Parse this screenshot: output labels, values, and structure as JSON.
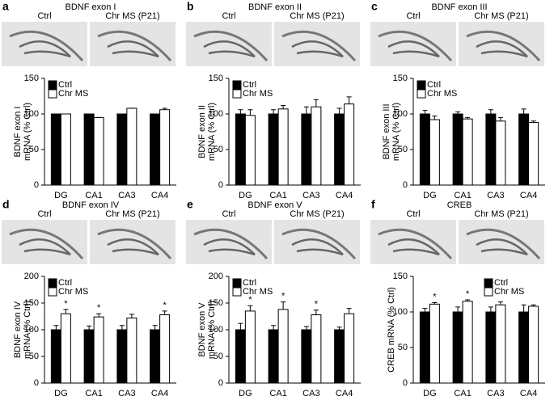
{
  "chart_data": [
    {
      "type": "bar",
      "panel_label": "a",
      "title": "BDNF exon I",
      "image_labels": [
        "Ctrl",
        "Chr MS (P21)"
      ],
      "ylabel": [
        "BDNF exon I",
        "mRNA (% Ctrl)"
      ],
      "categories": [
        "DG",
        "CA1",
        "CA3",
        "CA4"
      ],
      "series": [
        {
          "name": "Ctrl",
          "color": "#000000",
          "values": [
            100,
            100,
            100,
            100
          ],
          "errors": [
            0,
            0,
            0,
            0
          ]
        },
        {
          "name": "Chr MS",
          "color": "#ffffff",
          "values": [
            100,
            95,
            108,
            106
          ],
          "errors": [
            0,
            0,
            0,
            2
          ]
        }
      ],
      "ylim": [
        0,
        150
      ],
      "yticks": [
        0,
        50,
        100,
        150
      ],
      "legend": "upper left"
    },
    {
      "type": "bar",
      "panel_label": "b",
      "title": "BDNF exon II",
      "image_labels": [
        "Ctrl",
        "Chr MS (P21)"
      ],
      "ylabel": [
        "BDNF exon II",
        "mRNA (% Ctrl)"
      ],
      "categories": [
        "DG",
        "CA1",
        "CA3",
        "CA4"
      ],
      "series": [
        {
          "name": "Ctrl",
          "color": "#000000",
          "values": [
            100,
            100,
            100,
            100
          ],
          "errors": [
            6,
            6,
            10,
            8
          ]
        },
        {
          "name": "Chr MS",
          "color": "#ffffff",
          "values": [
            98,
            107,
            110,
            114
          ],
          "errors": [
            8,
            5,
            10,
            10
          ]
        }
      ],
      "ylim": [
        0,
        150
      ],
      "yticks": [
        0,
        50,
        100,
        150
      ],
      "legend": "upper left"
    },
    {
      "type": "bar",
      "panel_label": "c",
      "title": "BDNF exon III",
      "image_labels": [
        "Ctrl",
        "Chr MS (P21)"
      ],
      "ylabel": [
        "BDNF exon III",
        "mRNA (% Ctrl)"
      ],
      "categories": [
        "DG",
        "CA1",
        "CA3",
        "CA4"
      ],
      "series": [
        {
          "name": "Ctrl",
          "color": "#000000",
          "values": [
            100,
            100,
            100,
            100
          ],
          "errors": [
            5,
            3,
            6,
            7
          ]
        },
        {
          "name": "Chr MS",
          "color": "#ffffff",
          "values": [
            92,
            93,
            90,
            88
          ],
          "errors": [
            5,
            2,
            5,
            2
          ]
        }
      ],
      "ylim": [
        0,
        150
      ],
      "yticks": [
        0,
        50,
        100,
        150
      ],
      "legend": "upper left"
    },
    {
      "type": "bar",
      "panel_label": "d",
      "title": "BDNF exon IV",
      "image_labels": [
        "Ctrl",
        "Chr MS (P21)"
      ],
      "ylabel": [
        "BDNF exon IV",
        "mRNA (% Ctrl)"
      ],
      "categories": [
        "DG",
        "CA1",
        "CA3",
        "CA4"
      ],
      "series": [
        {
          "name": "Ctrl",
          "color": "#000000",
          "values": [
            100,
            100,
            100,
            100
          ],
          "errors": [
            8,
            7,
            8,
            8
          ]
        },
        {
          "name": "Chr MS",
          "color": "#ffffff",
          "values": [
            130,
            124,
            122,
            128
          ],
          "errors": [
            8,
            6,
            7,
            7
          ],
          "markers": [
            "*",
            "*",
            null,
            "*"
          ]
        }
      ],
      "ylim": [
        0,
        200
      ],
      "yticks": [
        0,
        50,
        100,
        150,
        200
      ],
      "legend": "upper left"
    },
    {
      "type": "bar",
      "panel_label": "e",
      "title": "BDNF exon V",
      "image_labels": [
        "Ctrl",
        "Chr MS (P21)"
      ],
      "ylabel": [
        "BDNF exon V",
        "mRNA (% Ctrl)"
      ],
      "categories": [
        "DG",
        "CA1",
        "CA3",
        "CA4"
      ],
      "series": [
        {
          "name": "Ctrl",
          "color": "#000000",
          "values": [
            100,
            100,
            100,
            100
          ],
          "errors": [
            12,
            8,
            6,
            5
          ]
        },
        {
          "name": "Chr MS",
          "color": "#ffffff",
          "values": [
            135,
            138,
            128,
            130
          ],
          "errors": [
            10,
            14,
            9,
            10
          ],
          "markers": [
            "*",
            "*",
            "*",
            null
          ]
        }
      ],
      "ylim": [
        0,
        200
      ],
      "yticks": [
        0,
        50,
        100,
        150,
        200
      ],
      "legend": "upper left"
    },
    {
      "type": "bar",
      "panel_label": "f",
      "title": "CREB",
      "image_labels": [
        "Ctrl",
        "Chr MS (P21)"
      ],
      "ylabel": [
        "CREB mRNA (% Ctrl)"
      ],
      "categories": [
        "DG",
        "CA1",
        "CA3",
        "CA4"
      ],
      "series": [
        {
          "name": "Ctrl",
          "color": "#000000",
          "values": [
            100,
            100,
            100,
            100
          ],
          "errors": [
            5,
            7,
            7,
            10
          ]
        },
        {
          "name": "Chr MS",
          "color": "#ffffff",
          "values": [
            111,
            115,
            110,
            108
          ],
          "errors": [
            2,
            2,
            4,
            2
          ],
          "markers": [
            "*",
            "*",
            null,
            null
          ]
        }
      ],
      "ylim": [
        0,
        150
      ],
      "yticks": [
        0,
        50,
        100,
        150
      ],
      "legend": "upper right"
    }
  ]
}
